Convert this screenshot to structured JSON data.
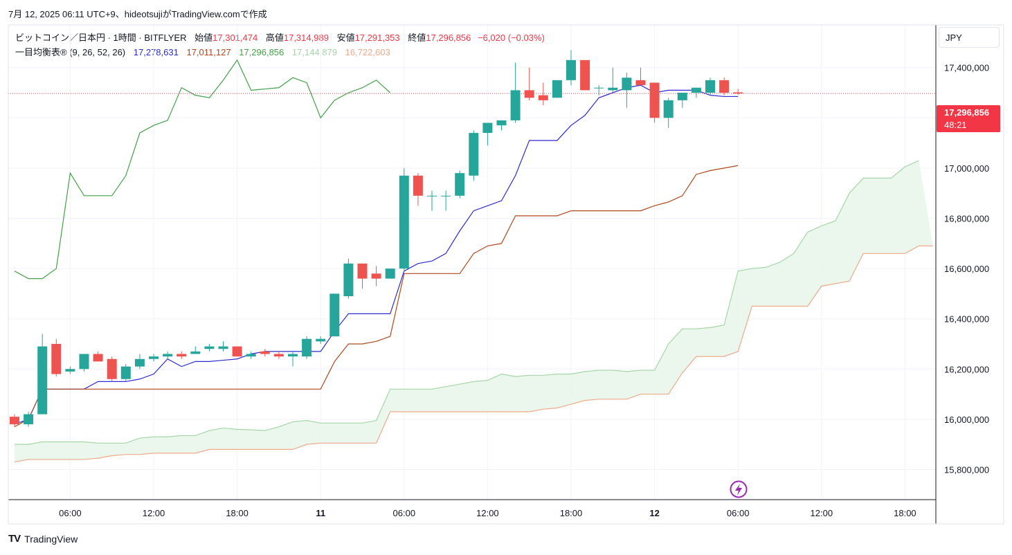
{
  "header": {
    "caption": "7月 12, 2025 06:11 UTC+9、hideotsujiがTradingView.comで作成"
  },
  "legend": {
    "symbol": "ビットコイン／日本円 · 1時間 · BITFLYER",
    "open_label": "始値",
    "open": "17,301,474",
    "high_label": "高値",
    "high": "17,314,989",
    "low_label": "安値",
    "low": "17,291,353",
    "close_label": "終値",
    "close": "17,296,856",
    "change": "−6,020 (−0.03%)",
    "indicator": "一目均衡表® (9, 26, 52, 26)",
    "ind_values": [
      "17,278,631",
      "17,011,127",
      "17,296,856",
      "17,144,879",
      "16,722,603"
    ]
  },
  "currency_button": "JPY",
  "price_tag": {
    "price": "17,296,856",
    "countdown": "48:21"
  },
  "footer": {
    "logo_mark": "TV",
    "brand": "TradingView"
  },
  "colors": {
    "up": "#26a69a",
    "down": "#ef5350",
    "tenkan": "#2b2bd1",
    "kijun": "#b0471c",
    "chikou": "#43a047",
    "span_a": "#a5d6a7",
    "span_b": "#f0a98a",
    "cloud": "#e8f5e9"
  },
  "chart_data": {
    "type": "candlestick",
    "title": "ビットコイン／日本円 · 1時間 · BITFLYER",
    "ylim": [
      15680000,
      17570000
    ],
    "y_ticks": [
      15800000,
      16000000,
      16200000,
      16400000,
      16600000,
      16800000,
      17000000,
      17200000,
      17400000
    ],
    "y_tick_labels": [
      "15,800,000",
      "16,000,000",
      "16,200,000",
      "16,400,000",
      "16,600,000",
      "16,800,000",
      "17,000,000",
      "17,200,000",
      "17,400,000"
    ],
    "x_axis_labels": [
      {
        "bar": 4,
        "label": "06:00",
        "bold": false
      },
      {
        "bar": 10,
        "label": "12:00",
        "bold": false
      },
      {
        "bar": 16,
        "label": "18:00",
        "bold": false
      },
      {
        "bar": 22,
        "label": "11",
        "bold": true
      },
      {
        "bar": 28,
        "label": "06:00",
        "bold": false
      },
      {
        "bar": 34,
        "label": "12:00",
        "bold": false
      },
      {
        "bar": 40,
        "label": "18:00",
        "bold": false
      },
      {
        "bar": 46,
        "label": "12",
        "bold": true
      },
      {
        "bar": 52,
        "label": "06:00",
        "bold": false
      },
      {
        "bar": 58,
        "label": "12:00",
        "bold": false
      },
      {
        "bar": 64,
        "label": "18:00",
        "bold": false
      }
    ],
    "candles": [
      {
        "o": 16010000,
        "h": 16020000,
        "l": 15970000,
        "c": 15980000
      },
      {
        "o": 15980000,
        "h": 16030000,
        "l": 15970000,
        "c": 16020000
      },
      {
        "o": 16020000,
        "h": 16340000,
        "l": 16020000,
        "c": 16290000
      },
      {
        "o": 16300000,
        "h": 16320000,
        "l": 16170000,
        "c": 16180000
      },
      {
        "o": 16190000,
        "h": 16210000,
        "l": 16180000,
        "c": 16200000
      },
      {
        "o": 16200000,
        "h": 16260000,
        "l": 16190000,
        "c": 16260000
      },
      {
        "o": 16260000,
        "h": 16270000,
        "l": 16230000,
        "c": 16230000
      },
      {
        "o": 16240000,
        "h": 16250000,
        "l": 16150000,
        "c": 16160000
      },
      {
        "o": 16160000,
        "h": 16220000,
        "l": 16150000,
        "c": 16210000
      },
      {
        "o": 16210000,
        "h": 16260000,
        "l": 16200000,
        "c": 16240000
      },
      {
        "o": 16240000,
        "h": 16260000,
        "l": 16230000,
        "c": 16250000
      },
      {
        "o": 16250000,
        "h": 16270000,
        "l": 16240000,
        "c": 16260000
      },
      {
        "o": 16260000,
        "h": 16270000,
        "l": 16240000,
        "c": 16250000
      },
      {
        "o": 16260000,
        "h": 16290000,
        "l": 16260000,
        "c": 16270000
      },
      {
        "o": 16280000,
        "h": 16300000,
        "l": 16270000,
        "c": 16290000
      },
      {
        "o": 16280000,
        "h": 16310000,
        "l": 16270000,
        "c": 16290000
      },
      {
        "o": 16290000,
        "h": 16290000,
        "l": 16250000,
        "c": 16250000
      },
      {
        "o": 16250000,
        "h": 16270000,
        "l": 16240000,
        "c": 16260000
      },
      {
        "o": 16270000,
        "h": 16280000,
        "l": 16250000,
        "c": 16260000
      },
      {
        "o": 16260000,
        "h": 16270000,
        "l": 16240000,
        "c": 16250000
      },
      {
        "o": 16250000,
        "h": 16270000,
        "l": 16210000,
        "c": 16260000
      },
      {
        "o": 16250000,
        "h": 16330000,
        "l": 16240000,
        "c": 16320000
      },
      {
        "o": 16310000,
        "h": 16330000,
        "l": 16300000,
        "c": 16320000
      },
      {
        "o": 16330000,
        "h": 16500000,
        "l": 16330000,
        "c": 16500000
      },
      {
        "o": 16490000,
        "h": 16640000,
        "l": 16480000,
        "c": 16620000
      },
      {
        "o": 16620000,
        "h": 16620000,
        "l": 16520000,
        "c": 16560000
      },
      {
        "o": 16580000,
        "h": 16610000,
        "l": 16530000,
        "c": 16560000
      },
      {
        "o": 16560000,
        "h": 16600000,
        "l": 16560000,
        "c": 16600000
      },
      {
        "o": 16600000,
        "h": 17000000,
        "l": 16590000,
        "c": 16970000
      },
      {
        "o": 16970000,
        "h": 16980000,
        "l": 16850000,
        "c": 16890000
      },
      {
        "o": 16890000,
        "h": 16910000,
        "l": 16830000,
        "c": 16890000
      },
      {
        "o": 16890000,
        "h": 16910000,
        "l": 16830000,
        "c": 16890000
      },
      {
        "o": 16890000,
        "h": 16990000,
        "l": 16880000,
        "c": 16980000
      },
      {
        "o": 16970000,
        "h": 17150000,
        "l": 16950000,
        "c": 17140000
      },
      {
        "o": 17140000,
        "h": 17180000,
        "l": 17090000,
        "c": 17180000
      },
      {
        "o": 17170000,
        "h": 17190000,
        "l": 17150000,
        "c": 17190000
      },
      {
        "o": 17190000,
        "h": 17420000,
        "l": 17180000,
        "c": 17310000
      },
      {
        "o": 17310000,
        "h": 17400000,
        "l": 17270000,
        "c": 17280000
      },
      {
        "o": 17290000,
        "h": 17340000,
        "l": 17250000,
        "c": 17270000
      },
      {
        "o": 17280000,
        "h": 17350000,
        "l": 17280000,
        "c": 17350000
      },
      {
        "o": 17350000,
        "h": 17470000,
        "l": 17330000,
        "c": 17430000
      },
      {
        "o": 17430000,
        "h": 17430000,
        "l": 17310000,
        "c": 17310000
      },
      {
        "o": 17320000,
        "h": 17330000,
        "l": 17290000,
        "c": 17320000
      },
      {
        "o": 17310000,
        "h": 17400000,
        "l": 17300000,
        "c": 17320000
      },
      {
        "o": 17310000,
        "h": 17380000,
        "l": 17240000,
        "c": 17360000
      },
      {
        "o": 17350000,
        "h": 17400000,
        "l": 17330000,
        "c": 17330000
      },
      {
        "o": 17340000,
        "h": 17340000,
        "l": 17180000,
        "c": 17200000
      },
      {
        "o": 17200000,
        "h": 17280000,
        "l": 17160000,
        "c": 17270000
      },
      {
        "o": 17270000,
        "h": 17300000,
        "l": 17240000,
        "c": 17300000
      },
      {
        "o": 17300000,
        "h": 17320000,
        "l": 17280000,
        "c": 17320000
      },
      {
        "o": 17300000,
        "h": 17360000,
        "l": 17290000,
        "c": 17350000
      },
      {
        "o": 17350000,
        "h": 17360000,
        "l": 17290000,
        "c": 17300000
      },
      {
        "o": 17301474,
        "h": 17314989,
        "l": 17291353,
        "c": 17296856
      }
    ],
    "series": [
      {
        "name": "Tenkan",
        "start": 0,
        "values": [
          15980000,
          16000000,
          16120000,
          16120000,
          16120000,
          16120000,
          16150000,
          16150000,
          16150000,
          16160000,
          16180000,
          16240000,
          16210000,
          16230000,
          16230000,
          16235000,
          16240000,
          16260000,
          16270000,
          16270000,
          16270000,
          16270000,
          16270000,
          16350000,
          16420000,
          16420000,
          16420000,
          16420000,
          16590000,
          16620000,
          16630000,
          16660000,
          16750000,
          16830000,
          16850000,
          16870000,
          16970000,
          17110000,
          17110000,
          17110000,
          17170000,
          17210000,
          17280000,
          17300000,
          17320000,
          17330000,
          17300000,
          17310000,
          17310000,
          17310000,
          17290000,
          17285000,
          17285000
        ]
      },
      {
        "name": "Kijun",
        "start": 0,
        "values": [
          15970000,
          16000000,
          16120000,
          16120000,
          16120000,
          16120000,
          16120000,
          16120000,
          16120000,
          16120000,
          16120000,
          16120000,
          16120000,
          16120000,
          16120000,
          16120000,
          16120000,
          16120000,
          16120000,
          16120000,
          16120000,
          16120000,
          16120000,
          16230000,
          16300000,
          16300000,
          16310000,
          16330000,
          16580000,
          16580000,
          16580000,
          16580000,
          16580000,
          16660000,
          16690000,
          16700000,
          16810000,
          16810000,
          16810000,
          16810000,
          16830000,
          16830000,
          16830000,
          16830000,
          16830000,
          16830000,
          16850000,
          16865000,
          16890000,
          16975000,
          16990000,
          17000000,
          17010000
        ]
      },
      {
        "name": "Chikou",
        "start": 0,
        "values": [
          16590000,
          16560000,
          16560000,
          16600000,
          16980000,
          16890000,
          16890000,
          16890000,
          16970000,
          17140000,
          17170000,
          17190000,
          17320000,
          17290000,
          17280000,
          17350000,
          17430000,
          17310000,
          17315000,
          17320000,
          17360000,
          17340000,
          17200000,
          17270000,
          17300000,
          17320000,
          17350000,
          17300000
        ]
      },
      {
        "name": "SpanA",
        "start": 0,
        "values": [
          15900000,
          15900000,
          15910000,
          15910000,
          15910000,
          15910000,
          15905000,
          15905000,
          15905000,
          15925000,
          15930000,
          15930000,
          15935000,
          15935000,
          15955000,
          15965000,
          15960000,
          15958000,
          15955000,
          15970000,
          15990000,
          15995000,
          15985000,
          15985000,
          15985000,
          15985000,
          15995000,
          16120000,
          16120000,
          16120000,
          16120000,
          16130000,
          16140000,
          16150000,
          16155000,
          16180000,
          16170000,
          16175000,
          16175000,
          16180000,
          16180000,
          16190000,
          16195000,
          16195000,
          16190000,
          16195000,
          16195000,
          16300000,
          16360000,
          16360000,
          16365000,
          16375000,
          16590000,
          16600000,
          16605000,
          16625000,
          16660000,
          16745000,
          16770000,
          16790000,
          16900000,
          16960000,
          16960000,
          16960000,
          17005000,
          17030000
        ]
      },
      {
        "name": "SpanB",
        "start": 0,
        "values": [
          15830000,
          15840000,
          15840000,
          15840000,
          15840000,
          15840000,
          15845000,
          15855000,
          15860000,
          15860000,
          15865000,
          15865000,
          15865000,
          15865000,
          15880000,
          15880000,
          15880000,
          15880000,
          15880000,
          15880000,
          15880000,
          15900000,
          15905000,
          15905000,
          15905000,
          15905000,
          15905000,
          16030000,
          16030000,
          16030000,
          16030000,
          16030000,
          16030000,
          16030000,
          16030000,
          16030000,
          16030000,
          16030000,
          16040000,
          16045000,
          16060000,
          16075000,
          16080000,
          16080000,
          16080000,
          16100000,
          16100000,
          16100000,
          16185000,
          16250000,
          16250000,
          16250000,
          16270000,
          16450000,
          16450000,
          16450000,
          16450000,
          16450000,
          16530000,
          16540000,
          16550000,
          16660000,
          16660000,
          16660000,
          16660000,
          16690000,
          16690000
        ]
      }
    ]
  }
}
